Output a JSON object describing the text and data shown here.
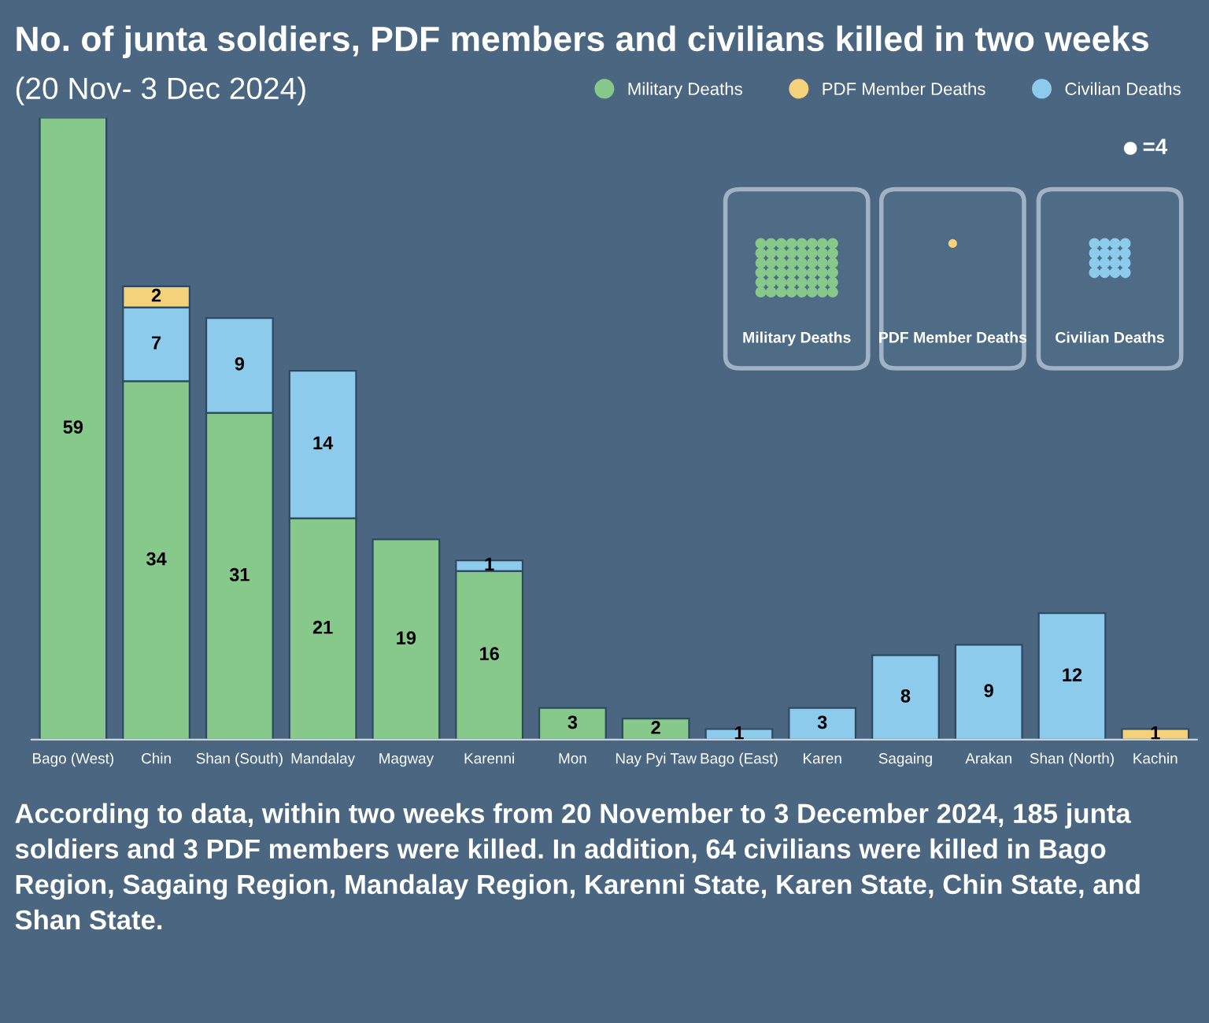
{
  "chart_data": {
    "type": "bar",
    "stacked": true,
    "data_labels": true,
    "legend": "top right",
    "grid": false,
    "title": "No. of junta soldiers, PDF members and civilians killed in two weeks",
    "subtitle": "(20 Nov- 3 Dec 2024)",
    "categories": [
      "Bago (West)",
      "Chin",
      "Shan (South)",
      "Mandalay",
      "Magway",
      "Karenni",
      "Mon",
      "Nay Pyi Taw",
      "Bago (East)",
      "Karen",
      "Sagaing",
      "Arakan",
      "Shan (North)",
      "Kachin"
    ],
    "series": [
      {
        "name": "Military Deaths",
        "color": "#86c98a",
        "values": [
          59,
          34,
          31,
          21,
          19,
          16,
          3,
          2,
          null,
          null,
          null,
          null,
          null,
          null
        ]
      },
      {
        "name": "Civilian Deaths",
        "color": "#8ccbeb",
        "values": [
          null,
          7,
          9,
          14,
          null,
          1,
          null,
          null,
          1,
          3,
          8,
          9,
          12,
          null
        ]
      },
      {
        "name": "PDF Member Deaths",
        "color": "#f4d27c",
        "values": [
          null,
          2,
          null,
          null,
          null,
          null,
          null,
          null,
          null,
          null,
          null,
          null,
          null,
          1
        ]
      }
    ],
    "annotations": [
      "According to data, within two weeks from 20 November to 3 December 2024, 185 junta soldiers and 3 PDF members were killed. In addition, 64 civilians were killed in Bago Region, Sagaing Region, Mandalay Region, Karenni State, Karen State, Chin State, and Shan State.",
      "=4",
      "Military Deaths",
      "PDF Member Deaths",
      "Civilian Deaths"
    ]
  }
}
